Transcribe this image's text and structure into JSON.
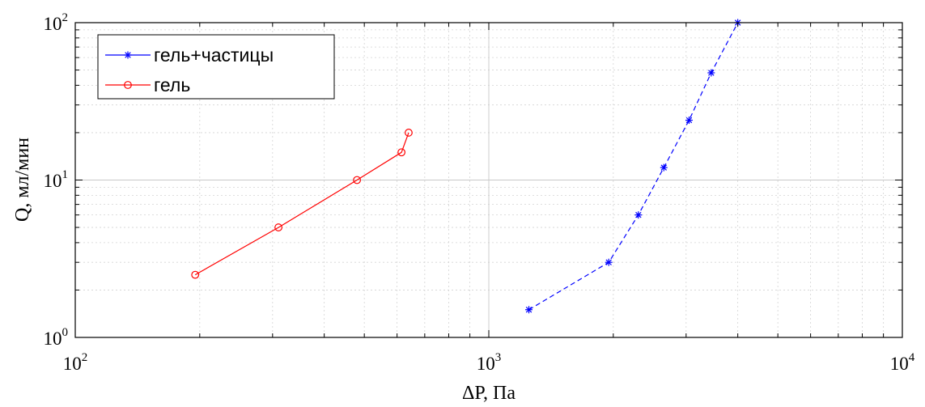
{
  "chart_data": {
    "type": "line",
    "xlabel": "ΔP, Па",
    "ylabel": "Q, мл/мин",
    "x_scale": "log",
    "y_scale": "log",
    "xlim": [
      100,
      10000
    ],
    "ylim": [
      1,
      100
    ],
    "grid": true,
    "legend_position": "top-left",
    "x_ticks": [
      {
        "base": "10",
        "exp": "2",
        "value": 100
      },
      {
        "base": "10",
        "exp": "3",
        "value": 1000
      },
      {
        "base": "10",
        "exp": "4",
        "value": 10000
      }
    ],
    "y_ticks": [
      {
        "base": "10",
        "exp": "0",
        "value": 1
      },
      {
        "base": "10",
        "exp": "1",
        "value": 10
      },
      {
        "base": "10",
        "exp": "2",
        "value": 100
      }
    ],
    "series": [
      {
        "name": "гель+частицы",
        "color": "#0000ff",
        "marker": "star",
        "line_style": "dashed",
        "x": [
          1250,
          1950,
          2300,
          2650,
          3050,
          3450,
          4000
        ],
        "y": [
          1.5,
          3.0,
          6.0,
          12.0,
          24.0,
          48.0,
          100.0
        ]
      },
      {
        "name": "гель",
        "color": "#ff0000",
        "marker": "circle",
        "line_style": "solid",
        "x": [
          195,
          310,
          480,
          615,
          640
        ],
        "y": [
          2.5,
          5.0,
          10.0,
          15.0,
          20.0
        ]
      }
    ]
  }
}
